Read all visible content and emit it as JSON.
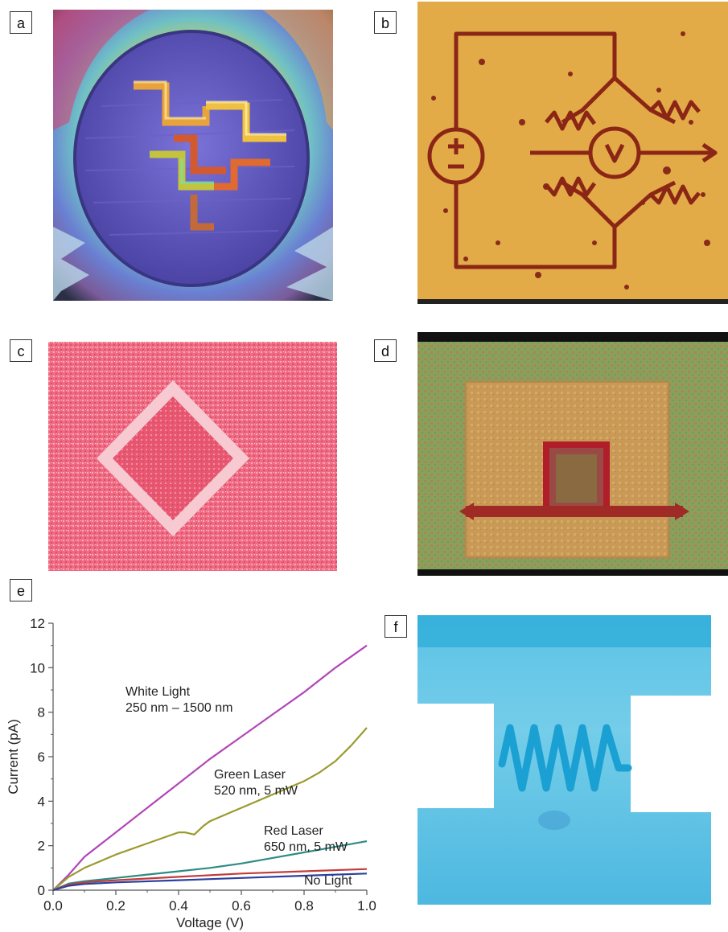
{
  "panels": {
    "a": {
      "label": "a"
    },
    "b": {
      "label": "b"
    },
    "c": {
      "label": "c"
    },
    "d": {
      "label": "d"
    },
    "e": {
      "label": "e"
    },
    "f": {
      "label": "f"
    }
  },
  "chart_data": {
    "type": "line",
    "xlabel": "Voltage (V)",
    "ylabel": "Current (pA)",
    "xlim": [
      0.0,
      1.0
    ],
    "ylim": [
      0,
      12
    ],
    "xticks": [
      "0.0",
      "0.2",
      "0.4",
      "0.6",
      "0.8",
      "1.0"
    ],
    "yticks": [
      "0",
      "2",
      "4",
      "6",
      "8",
      "10",
      "12"
    ],
    "grid": false,
    "series": [
      {
        "name": "White Light",
        "color": "#b146b8",
        "x": [
          0,
          0.05,
          0.1,
          0.2,
          0.3,
          0.4,
          0.5,
          0.6,
          0.7,
          0.8,
          0.9,
          1.0
        ],
        "y": [
          0,
          0.7,
          1.5,
          2.6,
          3.7,
          4.8,
          5.9,
          6.9,
          7.9,
          8.9,
          10.0,
          11.0
        ]
      },
      {
        "name": "Green Laser",
        "color": "#9b9a2e",
        "x": [
          0,
          0.05,
          0.1,
          0.2,
          0.3,
          0.4,
          0.42,
          0.45,
          0.48,
          0.5,
          0.6,
          0.7,
          0.8,
          0.85,
          0.9,
          0.95,
          1.0
        ],
        "y": [
          0,
          0.6,
          1.0,
          1.6,
          2.1,
          2.6,
          2.6,
          2.5,
          2.9,
          3.1,
          3.7,
          4.3,
          4.9,
          5.3,
          5.8,
          6.5,
          7.3
        ]
      },
      {
        "name": "Red Laser",
        "color": "#2e8b84",
        "x": [
          0,
          0.05,
          0.1,
          0.2,
          0.3,
          0.4,
          0.5,
          0.6,
          0.7,
          0.8,
          0.9,
          1.0
        ],
        "y": [
          0,
          0.3,
          0.4,
          0.55,
          0.7,
          0.85,
          1.0,
          1.2,
          1.45,
          1.7,
          1.95,
          2.2
        ]
      },
      {
        "name": "No Light",
        "color": "#c23c3c",
        "x": [
          0,
          0.05,
          0.1,
          0.2,
          0.4,
          0.6,
          0.8,
          1.0
        ],
        "y": [
          0,
          0.25,
          0.35,
          0.45,
          0.6,
          0.75,
          0.85,
          0.95
        ]
      },
      {
        "name": "",
        "color": "#2b3f9e",
        "x": [
          0,
          0.05,
          0.1,
          0.2,
          0.4,
          0.6,
          0.8,
          1.0
        ],
        "y": [
          0,
          0.2,
          0.28,
          0.35,
          0.45,
          0.55,
          0.65,
          0.75
        ]
      }
    ],
    "annotations": [
      {
        "lines": [
          "White Light",
          "250 nm – 1500 nm"
        ]
      },
      {
        "lines": [
          "Green Laser",
          "520 nm, 5 mW"
        ]
      },
      {
        "lines": [
          "Red Laser",
          "650 nm, 5 mW"
        ]
      },
      {
        "lines": [
          "No Light"
        ]
      }
    ]
  }
}
